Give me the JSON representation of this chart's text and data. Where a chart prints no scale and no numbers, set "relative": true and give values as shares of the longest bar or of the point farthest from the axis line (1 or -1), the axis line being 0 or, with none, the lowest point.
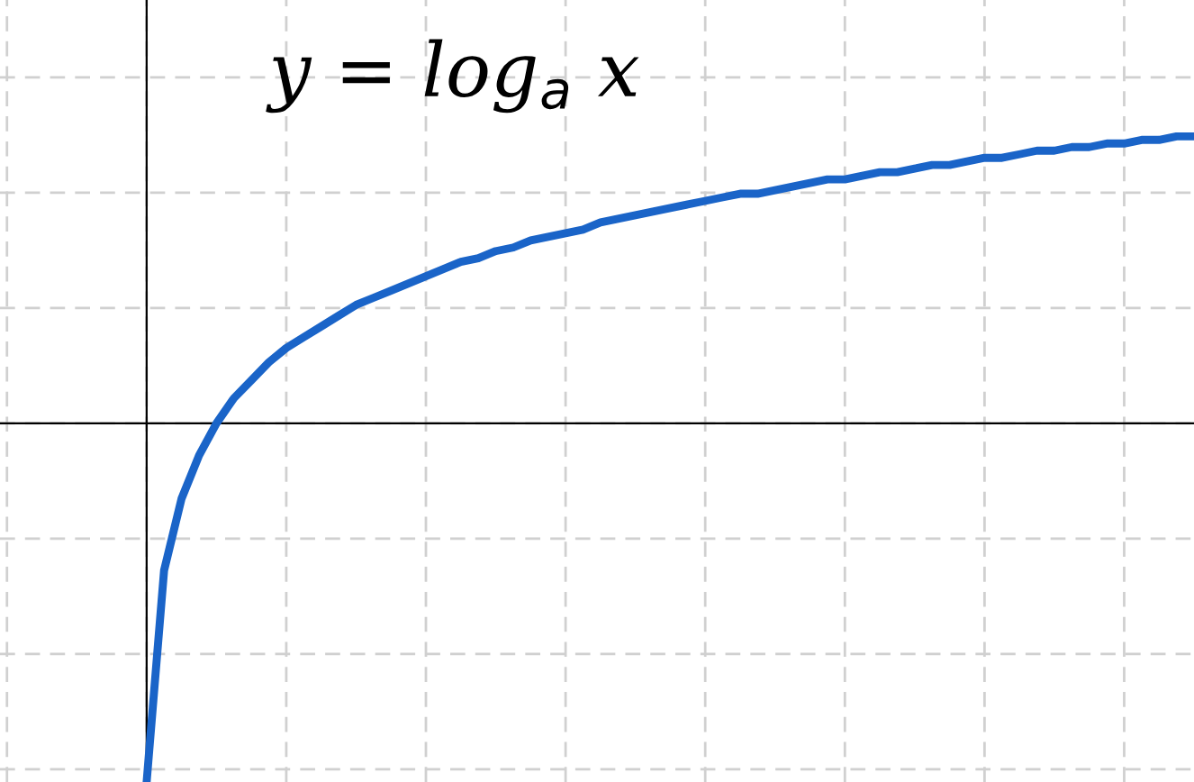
{
  "chart_data": {
    "type": "line",
    "title": "y = log$_{a}$ x",
    "relative": true,
    "grid": true,
    "marker": "none",
    "line_style": "solid",
    "categories": [
      null,
      null,
      null,
      null,
      null,
      null,
      null,
      null,
      null,
      null,
      null,
      null,
      null,
      null,
      null,
      null,
      null,
      null,
      null,
      null,
      null,
      null,
      null,
      null,
      null,
      null,
      null,
      null,
      null,
      null,
      null,
      null,
      null,
      null,
      null,
      null,
      null,
      null,
      null,
      null,
      null,
      null,
      null,
      null,
      null,
      null,
      null,
      null,
      null,
      null,
      null,
      null,
      null,
      null,
      null,
      null,
      null,
      null,
      null,
      null,
      null
    ],
    "series": [
      {
        "color": "#1a64c8",
        "values": [
          -1,
          -0.41,
          -0.21,
          -0.09,
          0,
          0.07,
          0.12,
          0.17,
          0.21,
          0.24,
          0.27,
          0.3,
          0.33,
          0.35,
          0.37,
          0.39,
          0.41,
          0.43,
          0.45,
          0.46,
          0.48,
          0.49,
          0.51,
          0.52,
          0.53,
          0.54,
          0.56,
          0.57,
          0.58,
          0.59,
          0.6,
          0.61,
          0.62,
          0.63,
          0.64,
          0.64,
          0.65,
          0.66,
          0.67,
          0.68,
          0.68,
          0.69,
          0.7,
          0.7,
          0.71,
          0.72,
          0.72,
          0.73,
          0.74,
          0.74,
          0.75,
          0.76,
          0.76,
          0.77,
          0.77,
          0.78,
          0.78,
          0.79,
          0.79,
          0.8,
          0.8
        ]
      }
    ]
  }
}
